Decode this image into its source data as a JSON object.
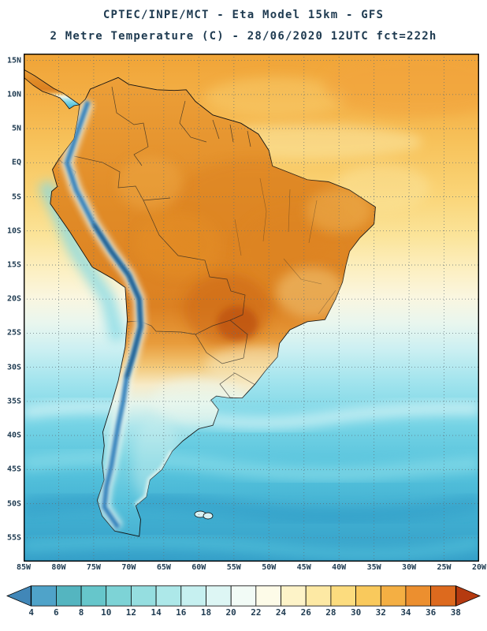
{
  "header": {
    "line1": "CPTEC/INPE/MCT -  Eta Model 15km - GFS",
    "line2": "2 Metre Temperature (C) - 28/06/2020 12UTC fct=222h"
  },
  "map": {
    "lat_labels": [
      "15N",
      "10N",
      "5N",
      "EQ",
      "5S",
      "10S",
      "15S",
      "20S",
      "25S",
      "30S",
      "35S",
      "40S",
      "45S",
      "50S",
      "55S"
    ],
    "lon_labels": [
      "85W",
      "80W",
      "75W",
      "70W",
      "65W",
      "60W",
      "55W",
      "50W",
      "45W",
      "40W",
      "35W",
      "30W",
      "25W",
      "20W"
    ]
  },
  "colorbar": {
    "values": [
      "4",
      "6",
      "8",
      "10",
      "12",
      "14",
      "16",
      "18",
      "20",
      "22",
      "24",
      "26",
      "28",
      "30",
      "32",
      "34",
      "36",
      "38"
    ],
    "colors": [
      "#4187B8",
      "#4FA3C9",
      "#54B5C0",
      "#66C6CB",
      "#7DD3D6",
      "#95DEE0",
      "#ADE8E9",
      "#C6F0F0",
      "#DDF6F4",
      "#F2FBF6",
      "#FDFBE8",
      "#FDF3C8",
      "#FDE9A4",
      "#FCDC7E",
      "#F9C95C",
      "#F4AF43",
      "#EC8F2F",
      "#DD6A1E",
      "#B53A10"
    ]
  },
  "colors": {
    "text": "#1E3A50",
    "frame": "#000000",
    "grid": "#5F7078"
  }
}
